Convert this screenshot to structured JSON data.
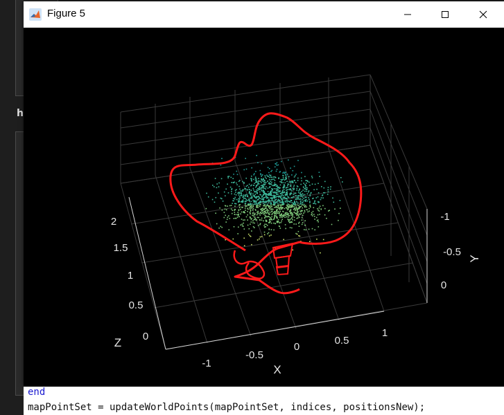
{
  "background": {
    "letter": "h"
  },
  "window": {
    "title": "Figure 5",
    "controls": {
      "minimize": "—",
      "maximize": "☐",
      "close": "✕"
    }
  },
  "chart_data": {
    "type": "3d-scatter",
    "xlabel": "X",
    "ylabel": "Y",
    "zlabel": "Z",
    "x_ticks": [
      "-1",
      "-0.5",
      "0",
      "0.5",
      "1"
    ],
    "y_ticks": [
      "-1",
      "-0.5",
      "0"
    ],
    "z_ticks": [
      "0",
      "0.5",
      "1",
      "1.5",
      "2"
    ],
    "grid": true,
    "background_color": "#000000",
    "trajectory_color": "#ff0000",
    "point_colormap": [
      "#1f9e9a",
      "#3db89a",
      "#7ec97a",
      "#c8e06a"
    ],
    "series": [
      {
        "name": "map points",
        "kind": "scatter",
        "count": 1500
      },
      {
        "name": "camera trajectory",
        "kind": "line"
      }
    ]
  },
  "code": {
    "line1": "end",
    "line2": "mapPointSet = updateWorldPoints(mapPointSet, indices, positionsNew);"
  }
}
